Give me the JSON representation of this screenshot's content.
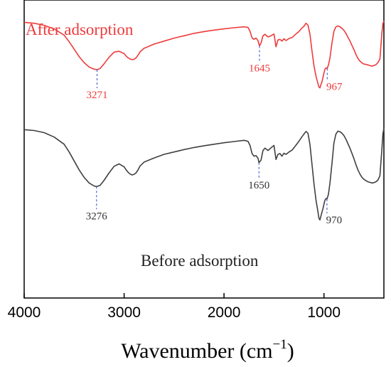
{
  "chart_data": {
    "type": "line",
    "title": "",
    "xlabel": "Wavenumber (cm",
    "xlabel_sup": "−1",
    "xlabel_suffix": ")",
    "ylabel": "",
    "xlim": [
      4000,
      400
    ],
    "x_reversed": true,
    "ylim": [
      0,
      100
    ],
    "y_ticks_visible": false,
    "grid": false,
    "x_ticks": [
      "4000",
      "3000",
      "2000",
      "1000"
    ],
    "x_tick_values": [
      4000,
      3000,
      2000,
      1000
    ],
    "series": [
      {
        "name": "After adsorption",
        "color": "#ee3b3b",
        "x": [
          4000,
          3900,
          3800,
          3700,
          3600,
          3550,
          3500,
          3450,
          3400,
          3350,
          3300,
          3271,
          3240,
          3200,
          3150,
          3100,
          3050,
          3000,
          2980,
          2960,
          2940,
          2920,
          2900,
          2880,
          2860,
          2840,
          2800,
          2700,
          2600,
          2500,
          2400,
          2300,
          2200,
          2100,
          2000,
          1900,
          1800,
          1760,
          1740,
          1720,
          1700,
          1680,
          1660,
          1645,
          1630,
          1610,
          1590,
          1560,
          1530,
          1500,
          1480,
          1460,
          1440,
          1420,
          1400,
          1380,
          1350,
          1320,
          1300,
          1280,
          1250,
          1220,
          1200,
          1180,
          1160,
          1140,
          1120,
          1100,
          1080,
          1060,
          1050,
          1040,
          1030,
          1020,
          1010,
          1000,
          990,
          980,
          967,
          955,
          940,
          920,
          900,
          880,
          860,
          840,
          820,
          800,
          780,
          760,
          740,
          720,
          700,
          680,
          660,
          640,
          620,
          600,
          580,
          560,
          540,
          520,
          500,
          480,
          460,
          440,
          420,
          410,
          400
        ],
        "y": [
          92.5,
          92.2,
          91.5,
          90.3,
          88.2,
          86.0,
          83.5,
          81.0,
          79.0,
          77.5,
          76.8,
          76.6,
          77.0,
          78.6,
          80.8,
          82.5,
          82.8,
          82.0,
          81.2,
          80.6,
          80.2,
          80.0,
          80.1,
          80.6,
          81.5,
          82.6,
          83.8,
          85.2,
          86.2,
          87.2,
          88.0,
          88.8,
          89.4,
          89.9,
          90.3,
          90.7,
          91.0,
          90.8,
          89.5,
          87.3,
          86.8,
          87.2,
          86.4,
          84.6,
          85.5,
          88.0,
          88.5,
          87.6,
          88.0,
          88.6,
          84.3,
          86.6,
          86.8,
          86.2,
          87.0,
          86.4,
          87.1,
          87.4,
          88.0,
          88.6,
          89.4,
          90.6,
          91.2,
          92.2,
          91.6,
          88.5,
          83.0,
          78.0,
          74.5,
          72.0,
          70.8,
          70.5,
          71.6,
          72.5,
          74.0,
          75.5,
          76.8,
          77.2,
          77.0,
          78.2,
          80.5,
          85.5,
          89.5,
          91.0,
          91.3,
          91.0,
          90.5,
          89.8,
          88.8,
          87.5,
          86.3,
          84.8,
          83.4,
          81.8,
          80.4,
          79.5,
          78.9,
          78.5,
          78.4,
          78.2,
          78.0,
          77.8,
          78.0,
          78.3,
          79.0,
          80.2,
          89.0,
          92.0,
          93.0
        ]
      },
      {
        "name": "Before adsorption",
        "color": "#404040",
        "x": [
          4000,
          3900,
          3800,
          3700,
          3600,
          3550,
          3500,
          3450,
          3400,
          3350,
          3300,
          3276,
          3240,
          3200,
          3150,
          3100,
          3050,
          3000,
          2980,
          2960,
          2940,
          2920,
          2900,
          2880,
          2860,
          2840,
          2800,
          2700,
          2600,
          2500,
          2400,
          2300,
          2200,
          2100,
          2000,
          1900,
          1800,
          1760,
          1740,
          1720,
          1700,
          1680,
          1660,
          1650,
          1630,
          1610,
          1590,
          1560,
          1530,
          1500,
          1480,
          1460,
          1440,
          1420,
          1400,
          1380,
          1350,
          1320,
          1300,
          1280,
          1250,
          1220,
          1200,
          1180,
          1160,
          1140,
          1120,
          1100,
          1080,
          1060,
          1050,
          1040,
          1030,
          1020,
          1010,
          1000,
          990,
          980,
          970,
          955,
          940,
          920,
          900,
          880,
          860,
          840,
          820,
          800,
          780,
          760,
          740,
          720,
          700,
          680,
          660,
          640,
          620,
          600,
          580,
          560,
          540,
          520,
          500,
          480,
          460,
          440,
          420,
          410,
          400
        ],
        "y": [
          56.5,
          56.2,
          55.5,
          54.0,
          51.6,
          49.0,
          46.0,
          43.0,
          40.5,
          38.6,
          37.6,
          37.4,
          37.8,
          39.5,
          42.0,
          44.2,
          45.0,
          44.0,
          43.0,
          42.2,
          41.6,
          41.3,
          41.5,
          42.0,
          43.0,
          44.3,
          45.6,
          47.0,
          48.2,
          49.0,
          49.8,
          50.5,
          51.1,
          51.6,
          52.1,
          52.5,
          52.9,
          52.6,
          51.2,
          48.5,
          47.6,
          47.8,
          46.9,
          45.4,
          46.2,
          49.5,
          50.3,
          49.5,
          50.4,
          51.2,
          46.5,
          48.2,
          48.5,
          47.6,
          48.6,
          48.2,
          49.0,
          49.6,
          50.4,
          51.3,
          52.6,
          54.1,
          55.0,
          55.9,
          55.3,
          51.5,
          45.0,
          38.5,
          33.0,
          29.0,
          26.8,
          26.2,
          27.5,
          28.8,
          30.0,
          31.5,
          32.8,
          33.4,
          33.2,
          34.8,
          38.5,
          45.0,
          52.0,
          55.0,
          56.0,
          55.8,
          55.3,
          54.5,
          53.3,
          51.8,
          50.3,
          48.6,
          46.8,
          44.8,
          43.0,
          41.6,
          40.5,
          39.8,
          39.4,
          39.0,
          38.8,
          38.6,
          38.7,
          39.0,
          39.6,
          41.0,
          50.0,
          55.0,
          57.0
        ]
      }
    ],
    "annotations": [
      {
        "text": "3271",
        "x": 3271,
        "series": 0,
        "color": "#ee3b3b"
      },
      {
        "text": "1645",
        "x": 1645,
        "series": 0,
        "color": "#ee3b3b"
      },
      {
        "text": "967",
        "x": 967,
        "series": 0,
        "color": "#ee3b3b"
      },
      {
        "text": "3276",
        "x": 3276,
        "series": 1,
        "color": "#333333"
      },
      {
        "text": "1650",
        "x": 1650,
        "series": 1,
        "color": "#333333"
      },
      {
        "text": "970",
        "x": 970,
        "series": 1,
        "color": "#333333"
      }
    ],
    "marker_line_color": "#3b5bdb"
  }
}
